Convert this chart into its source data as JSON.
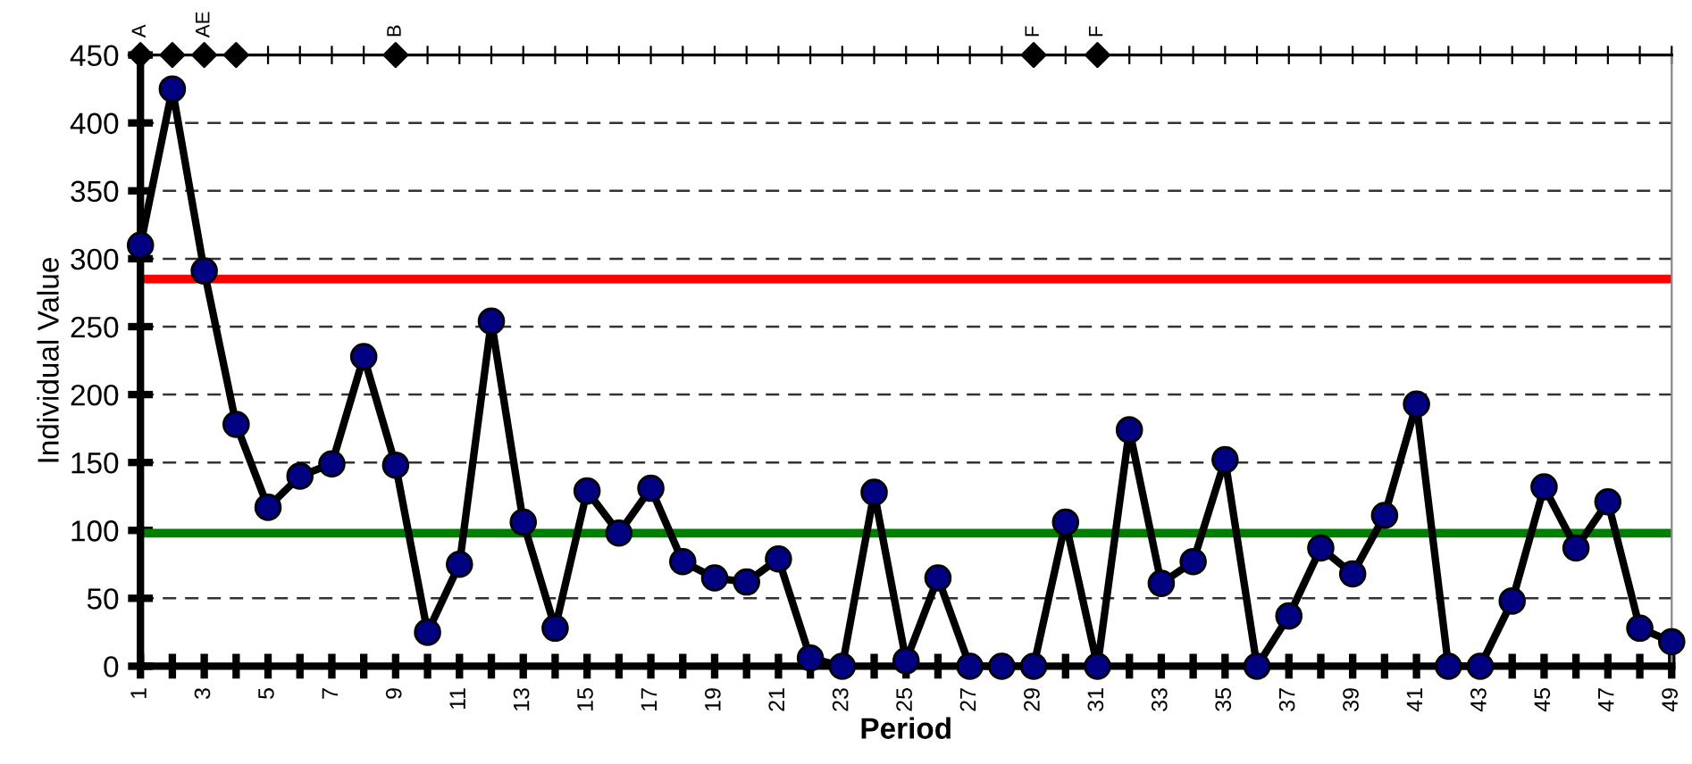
{
  "chart_data": {
    "type": "line",
    "xlabel": "Period",
    "ylabel": "Individual Value",
    "x": [
      1,
      2,
      3,
      4,
      5,
      6,
      7,
      8,
      9,
      10,
      11,
      12,
      13,
      14,
      15,
      16,
      17,
      18,
      19,
      20,
      21,
      22,
      23,
      24,
      25,
      26,
      27,
      28,
      29,
      30,
      31,
      32,
      33,
      34,
      35,
      36,
      37,
      38,
      39,
      40,
      41,
      42,
      43,
      44,
      45,
      46,
      47,
      48,
      49
    ],
    "series": [
      {
        "color": "#000000",
        "marker": "circle",
        "values": [
          310,
          425,
          291,
          178,
          117,
          140,
          149,
          228,
          148,
          25,
          75,
          254,
          106,
          28,
          129,
          98,
          131,
          77,
          65,
          62,
          79,
          6,
          0,
          128,
          4,
          65,
          0,
          0,
          0,
          106,
          0,
          174,
          61,
          77,
          152,
          0,
          37,
          87,
          68,
          111,
          193,
          0,
          0,
          48,
          132,
          87,
          121,
          28,
          18
        ]
      },
      {
        "type": "scatter",
        "color": "#000000",
        "marker": "diamond",
        "x": [
          1,
          2,
          3,
          4,
          9,
          29,
          31
        ],
        "values": [
          450,
          450,
          450,
          450,
          450,
          450,
          450
        ]
      }
    ],
    "annotations": [
      {
        "text": "A",
        "x": 1,
        "y": 450
      },
      {
        "text": "AE",
        "x": 3,
        "y": 450
      },
      {
        "text": "B",
        "x": 9,
        "y": 450
      },
      {
        "text": "F",
        "x": 29,
        "y": 450
      },
      {
        "text": "F",
        "x": 31,
        "y": 450
      }
    ],
    "ref_lines": [
      {
        "axis": "y",
        "value": 285,
        "color": "#ff0000"
      },
      {
        "axis": "y",
        "value": 98,
        "color": "#008000"
      }
    ],
    "xlim": [
      1,
      49
    ],
    "xticks": [
      1,
      {
        "value": 2,
        "label": null
      },
      3,
      {
        "value": 4,
        "label": null
      },
      5,
      {
        "value": 6,
        "label": null
      },
      7,
      {
        "value": 8,
        "label": null
      },
      9,
      {
        "value": 10,
        "label": null
      },
      11,
      {
        "value": 12,
        "label": null
      },
      13,
      {
        "value": 14,
        "label": null
      },
      15,
      {
        "value": 16,
        "label": null
      },
      17,
      {
        "value": 18,
        "label": null
      },
      19,
      {
        "value": 20,
        "label": null
      },
      21,
      {
        "value": 22,
        "label": null
      },
      23,
      {
        "value": 24,
        "label": null
      },
      25,
      {
        "value": 26,
        "label": null
      },
      27,
      {
        "value": 28,
        "label": null
      },
      29,
      {
        "value": 30,
        "label": null
      },
      31,
      {
        "value": 32,
        "label": null
      },
      33,
      {
        "value": 34,
        "label": null
      },
      35,
      {
        "value": 36,
        "label": null
      },
      37,
      {
        "value": 38,
        "label": null
      },
      39,
      {
        "value": 40,
        "label": null
      },
      41,
      {
        "value": 42,
        "label": null
      },
      43,
      {
        "value": 44,
        "label": null
      },
      45,
      {
        "value": 46,
        "label": null
      },
      47,
      {
        "value": 48,
        "label": null
      },
      49
    ],
    "ylim": [
      0,
      450
    ],
    "yticks": [
      0,
      50,
      100,
      150,
      200,
      250,
      300,
      350,
      400,
      450
    ],
    "grid": "y",
    "line_style": "solid",
    "legend": false
  }
}
